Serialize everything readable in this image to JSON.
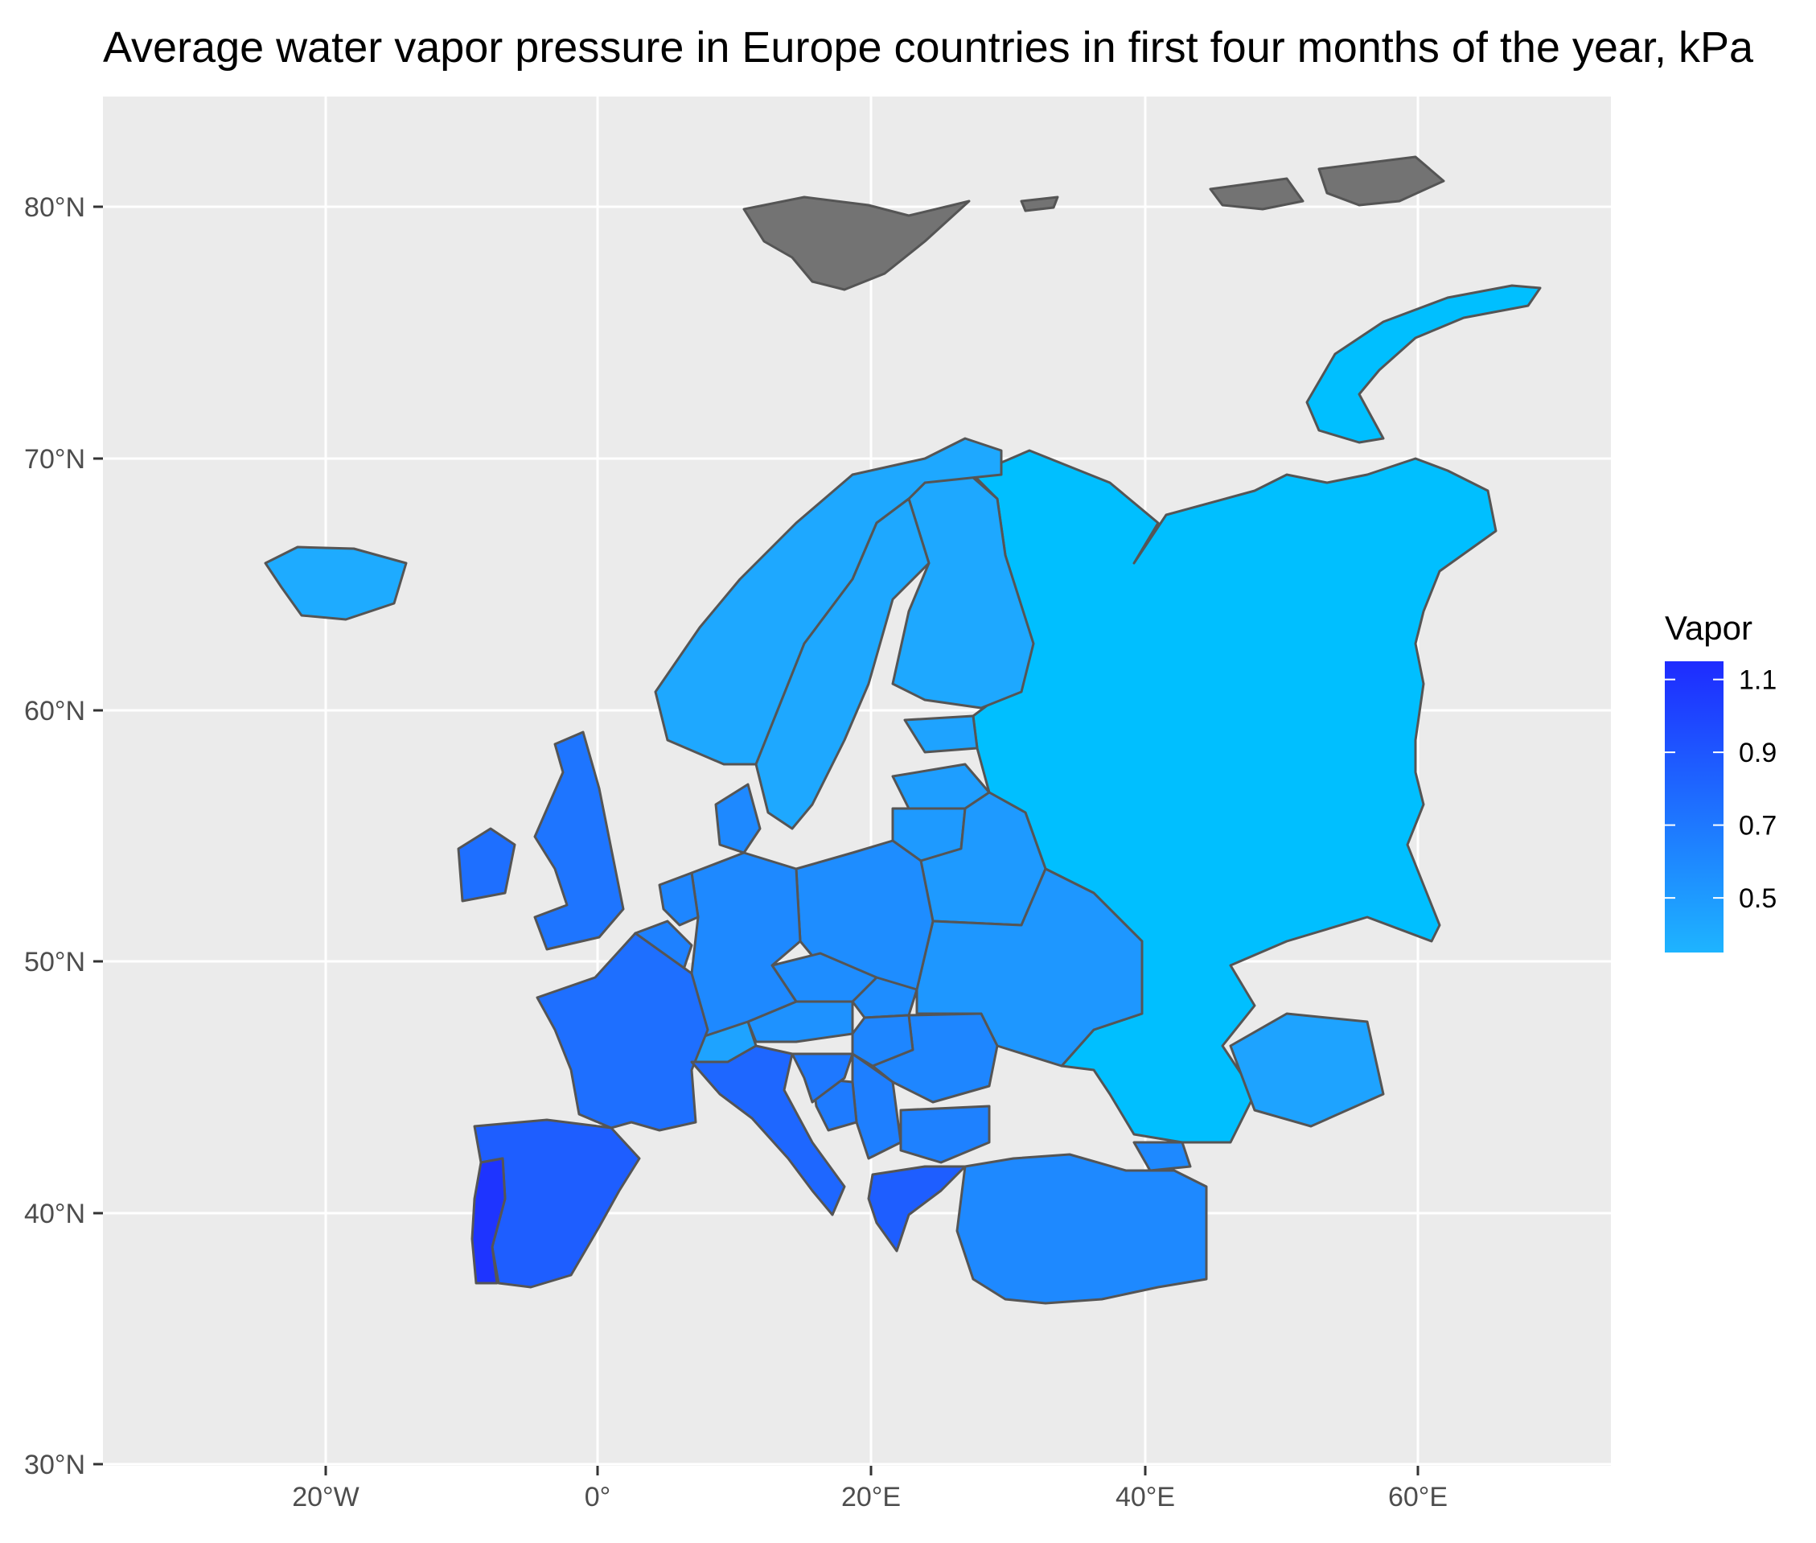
{
  "title": "Average water vapor pressure in Europe countries in first four months of the year, kPa",
  "colors": {
    "panel_bg": "#ebebeb",
    "grid": "#ffffff",
    "border": "#555555",
    "na_fill": "#737373",
    "low": "#1eb4ff",
    "high": "#1e2bff",
    "russia": "#00bfff"
  },
  "chart_data": {
    "type": "choropleth",
    "title": "Average water vapor pressure in Europe countries in first four months of the year, kPa",
    "x_ticks": [
      "20°W",
      "0°",
      "20°E",
      "40°E",
      "60°E"
    ],
    "y_ticks": [
      "80°N",
      "70°N",
      "60°N",
      "50°N",
      "40°N",
      "30°N"
    ],
    "legend": {
      "title": "Vapor",
      "labels": [
        "1.1",
        "0.9",
        "0.7",
        "0.5"
      ],
      "min": 0.35,
      "max": 1.15
    },
    "regions": [
      {
        "name": "Portugal",
        "value": 1.1
      },
      {
        "name": "Greece",
        "value": 0.85
      },
      {
        "name": "Spain",
        "value": 0.85
      },
      {
        "name": "Italy",
        "value": 0.8
      },
      {
        "name": "France",
        "value": 0.75
      },
      {
        "name": "Ireland",
        "value": 0.75
      },
      {
        "name": "United Kingdom",
        "value": 0.72
      },
      {
        "name": "Croatia",
        "value": 0.7
      },
      {
        "name": "Bosnia and Herzegovina",
        "value": 0.68
      },
      {
        "name": "Serbia",
        "value": 0.66
      },
      {
        "name": "Bulgaria",
        "value": 0.65
      },
      {
        "name": "Belgium",
        "value": 0.65
      },
      {
        "name": "Netherlands",
        "value": 0.62
      },
      {
        "name": "Hungary",
        "value": 0.62
      },
      {
        "name": "Romania",
        "value": 0.62
      },
      {
        "name": "Germany",
        "value": 0.6
      },
      {
        "name": "Denmark",
        "value": 0.6
      },
      {
        "name": "Turkey",
        "value": 0.6
      },
      {
        "name": "Georgia",
        "value": 0.6
      },
      {
        "name": "Czech Republic",
        "value": 0.58
      },
      {
        "name": "Slovakia",
        "value": 0.58
      },
      {
        "name": "Poland",
        "value": 0.58
      },
      {
        "name": "Austria",
        "value": 0.55
      },
      {
        "name": "Ukraine",
        "value": 0.52
      },
      {
        "name": "Belarus",
        "value": 0.5
      },
      {
        "name": "Lithuania",
        "value": 0.5
      },
      {
        "name": "Latvia",
        "value": 0.48
      },
      {
        "name": "Switzerland",
        "value": 0.45
      },
      {
        "name": "Estonia",
        "value": 0.45
      },
      {
        "name": "Kazakhstan",
        "value": 0.45
      },
      {
        "name": "Sweden",
        "value": 0.42
      },
      {
        "name": "Norway",
        "value": 0.42
      },
      {
        "name": "Finland",
        "value": 0.42
      },
      {
        "name": "Iceland",
        "value": 0.4
      },
      {
        "name": "Russia",
        "value": 0.35
      }
    ]
  }
}
